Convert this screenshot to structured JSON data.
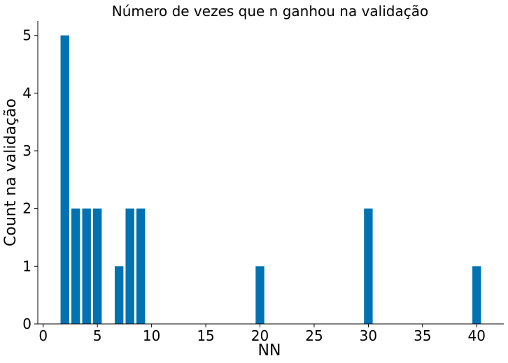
{
  "chart_data": {
    "type": "bar",
    "title": "Número de vezes que n ganhou na validação",
    "xlabel": "NN",
    "ylabel": "Count na validação",
    "x": [
      2,
      3,
      4,
      5,
      7,
      8,
      9,
      20,
      30,
      40
    ],
    "values": [
      5,
      2,
      2,
      2,
      1,
      2,
      2,
      1,
      2,
      1
    ],
    "xlim": [
      -0.5,
      42.5
    ],
    "ylim": [
      0,
      5.25
    ],
    "xticks": [
      0,
      5,
      10,
      15,
      20,
      25,
      30,
      35,
      40
    ],
    "yticks": [
      0,
      1,
      2,
      3,
      4,
      5
    ],
    "bar_width": 0.8,
    "bar_color": "#0072b2",
    "grid": false,
    "legend": "none"
  }
}
